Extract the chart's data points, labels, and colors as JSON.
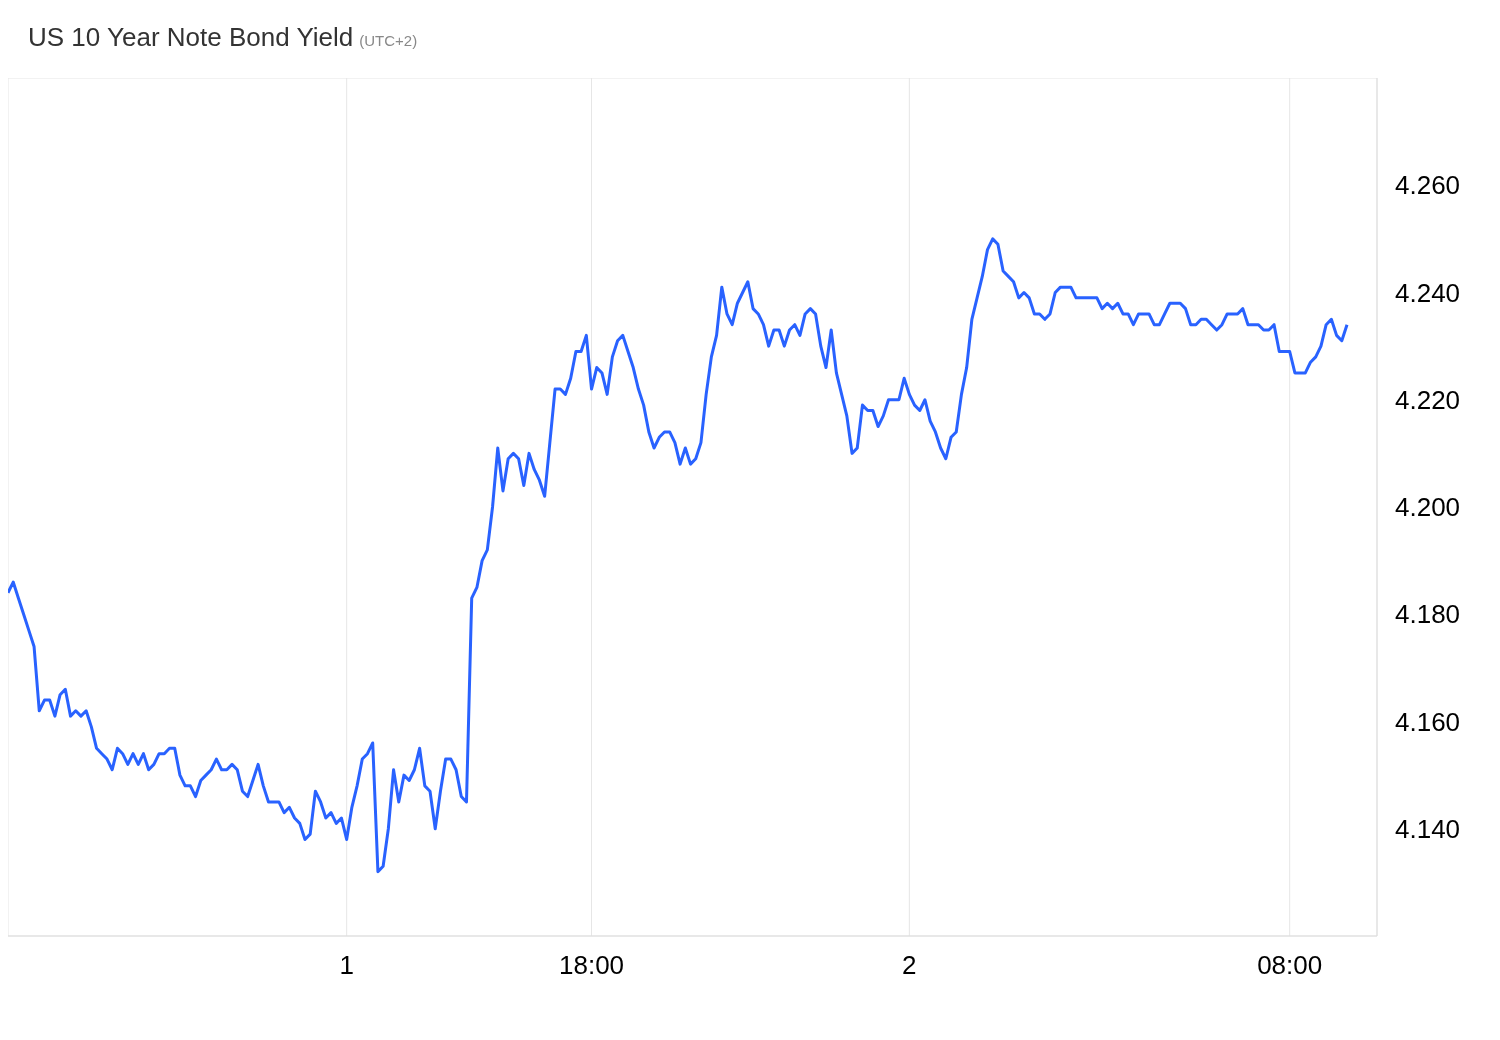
{
  "chart_data": {
    "type": "line",
    "title": "US 10 Year Note Bond Yield",
    "subtitle": "(UTC+2)",
    "categories": [
      null,
      null,
      null,
      null,
      null,
      null,
      null,
      null,
      null,
      null,
      null,
      null,
      null,
      null,
      null,
      null,
      null,
      null,
      null,
      null,
      null,
      null,
      null,
      null,
      null,
      null,
      null,
      null,
      null,
      null,
      null,
      null,
      null,
      null,
      null,
      null,
      null,
      null,
      null,
      null,
      null,
      null,
      null,
      null,
      null,
      null,
      null,
      null,
      null,
      null,
      null,
      null,
      null,
      null,
      null,
      null,
      null,
      null,
      null,
      null,
      null,
      null,
      null,
      null,
      null,
      "1",
      null,
      null,
      null,
      null,
      null,
      null,
      null,
      null,
      null,
      null,
      null,
      null,
      null,
      null,
      null,
      null,
      null,
      null,
      null,
      null,
      null,
      null,
      null,
      null,
      null,
      null,
      null,
      null,
      null,
      null,
      null,
      null,
      null,
      null,
      null,
      null,
      null,
      null,
      null,
      null,
      null,
      null,
      null,
      null,
      null,
      null,
      "18:00",
      null,
      null,
      null,
      null,
      null,
      null,
      null,
      null,
      null,
      null,
      null,
      null,
      null,
      null,
      null,
      null,
      null,
      null,
      null,
      null,
      null,
      null,
      null,
      null,
      null,
      null,
      null,
      null,
      null,
      null,
      null,
      null,
      null,
      null,
      null,
      null,
      null,
      null,
      null,
      null,
      null,
      null,
      null,
      null,
      null,
      null,
      null,
      null,
      null,
      null,
      null,
      null,
      null,
      null,
      null,
      null,
      null,
      null,
      null,
      null,
      "2",
      null,
      null,
      null,
      null,
      null,
      null,
      null,
      null,
      null,
      null,
      null,
      null,
      null,
      null,
      null,
      null,
      null,
      null,
      null,
      null,
      null,
      null,
      null,
      null,
      null,
      null,
      null,
      null,
      null,
      null,
      null,
      null,
      null,
      null,
      null,
      null,
      null,
      null,
      null,
      null,
      null,
      null,
      null,
      null,
      null,
      null,
      null,
      null,
      null,
      null,
      null,
      null,
      null,
      null,
      null,
      null,
      null,
      null,
      null,
      null,
      null,
      null,
      null,
      null,
      null,
      null,
      null,
      null,
      null,
      null,
      null,
      null,
      "08:00",
      null,
      null,
      null,
      null,
      null,
      null,
      null,
      null,
      null,
      null,
      null
    ],
    "series": [
      {
        "color": "#2962ff",
        "values": [
          4.184,
          4.186,
          4.183,
          4.18,
          4.177,
          4.174,
          4.162,
          4.164,
          4.164,
          4.161,
          4.165,
          4.166,
          4.161,
          4.162,
          4.161,
          4.162,
          4.159,
          4.155,
          4.154,
          4.153,
          4.151,
          4.155,
          4.154,
          4.152,
          4.154,
          4.152,
          4.154,
          4.151,
          4.152,
          4.154,
          4.154,
          4.155,
          4.155,
          4.15,
          4.148,
          4.148,
          4.146,
          4.149,
          4.15,
          4.151,
          4.153,
          4.151,
          4.151,
          4.152,
          4.151,
          4.147,
          4.146,
          4.149,
          4.152,
          4.148,
          4.145,
          4.145,
          4.145,
          4.143,
          4.144,
          4.142,
          4.141,
          4.138,
          4.139,
          4.147,
          4.145,
          4.142,
          4.143,
          4.141,
          4.142,
          4.138,
          4.144,
          4.148,
          4.153,
          4.154,
          4.156,
          4.132,
          4.133,
          4.14,
          4.151,
          4.145,
          4.15,
          4.149,
          4.151,
          4.155,
          4.148,
          4.147,
          4.14,
          4.147,
          4.153,
          4.153,
          4.151,
          4.146,
          4.145,
          4.183,
          4.185,
          4.19,
          4.192,
          4.2,
          4.211,
          4.203,
          4.209,
          4.21,
          4.209,
          4.204,
          4.21,
          4.207,
          4.205,
          4.202,
          4.212,
          4.222,
          4.222,
          4.221,
          4.224,
          4.229,
          4.229,
          4.232,
          4.222,
          4.226,
          4.225,
          4.221,
          4.228,
          4.231,
          4.232,
          4.229,
          4.226,
          4.222,
          4.219,
          4.214,
          4.211,
          4.213,
          4.214,
          4.214,
          4.212,
          4.208,
          4.211,
          4.208,
          4.209,
          4.212,
          4.221,
          4.228,
          4.232,
          4.241,
          4.236,
          4.234,
          4.238,
          4.24,
          4.242,
          4.237,
          4.236,
          4.234,
          4.23,
          4.233,
          4.233,
          4.23,
          4.233,
          4.234,
          4.232,
          4.236,
          4.237,
          4.236,
          4.23,
          4.226,
          4.233,
          4.225,
          4.221,
          4.217,
          4.21,
          4.211,
          4.219,
          4.218,
          4.218,
          4.215,
          4.217,
          4.22,
          4.22,
          4.22,
          4.224,
          4.221,
          4.219,
          4.218,
          4.22,
          4.216,
          4.214,
          4.211,
          4.209,
          4.213,
          4.214,
          4.221,
          4.226,
          4.235,
          4.239,
          4.243,
          4.248,
          4.25,
          4.249,
          4.244,
          4.243,
          4.242,
          4.239,
          4.24,
          4.239,
          4.236,
          4.236,
          4.235,
          4.236,
          4.24,
          4.241,
          4.241,
          4.241,
          4.239,
          4.239,
          4.239,
          4.239,
          4.239,
          4.237,
          4.238,
          4.237,
          4.238,
          4.236,
          4.236,
          4.234,
          4.236,
          4.236,
          4.236,
          4.234,
          4.234,
          4.236,
          4.238,
          4.238,
          4.238,
          4.237,
          4.234,
          4.234,
          4.235,
          4.235,
          4.234,
          4.233,
          4.234,
          4.236,
          4.236,
          4.236,
          4.237,
          4.234,
          4.234,
          4.234,
          4.233,
          4.233,
          4.234,
          4.229,
          4.229,
          4.229,
          4.225,
          4.225,
          4.225,
          4.227,
          4.228,
          4.23,
          4.234,
          4.235,
          4.232,
          4.231,
          4.234
        ]
      }
    ],
    "ylim": [
      4.12,
      4.28
    ],
    "yticks": [
      {
        "value": 4.14,
        "label": "4.140"
      },
      {
        "value": 4.16,
        "label": "4.160"
      },
      {
        "value": 4.18,
        "label": "4.180"
      },
      {
        "value": 4.2,
        "label": "4.200"
      },
      {
        "value": 4.22,
        "label": "4.220"
      },
      {
        "value": 4.24,
        "label": "4.240"
      },
      {
        "value": 4.26,
        "label": "4.260"
      }
    ],
    "grid": true,
    "marker": "none",
    "line_style": "solid"
  }
}
